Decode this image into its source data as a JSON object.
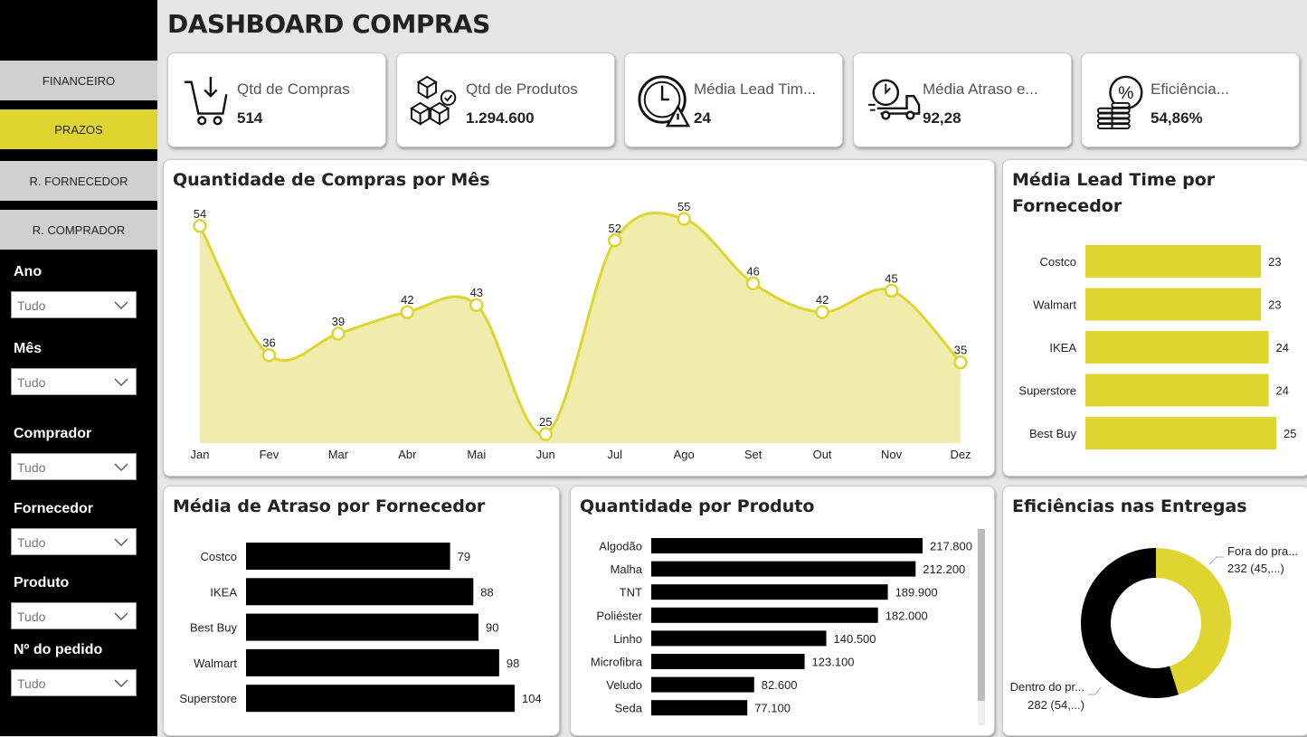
{
  "title": "DASHBOARD COMPRAS",
  "colors": {
    "accent": "#ded530",
    "accent_fill": "#f0ecab",
    "bar_dark": "#000000",
    "sidebar": "#000000"
  },
  "nav": [
    {
      "label": "FINANCEIRO",
      "active": false
    },
    {
      "label": "PRAZOS",
      "active": true
    },
    {
      "label": "R. FORNECEDOR",
      "active": false
    },
    {
      "label": "R. COMPRADOR",
      "active": false
    }
  ],
  "filters": [
    {
      "label": "Ano",
      "value": "Tudo"
    },
    {
      "label": "Mês",
      "value": "Tudo"
    },
    {
      "label": "Comprador",
      "value": "Tudo"
    },
    {
      "label": "Fornecedor",
      "value": "Tudo"
    },
    {
      "label": "Produto",
      "value": "Tudo"
    },
    {
      "label": "Nº do pedido",
      "value": "Tudo"
    }
  ],
  "kpis": [
    {
      "label": "Qtd de Compras",
      "value": "514",
      "icon": "shopping-cart-icon"
    },
    {
      "label": "Qtd de Produtos",
      "value": "1.294.600",
      "icon": "boxes-icon"
    },
    {
      "label": "Média Lead Tim...",
      "value": "24",
      "icon": "clock-warning-icon"
    },
    {
      "label": "Média Atraso e...",
      "value": "92,28",
      "icon": "delivery-truck-icon"
    },
    {
      "label": "Eficiência...",
      "value": "54,86%",
      "icon": "percent-coins-icon"
    }
  ],
  "chart_data": [
    {
      "type": "area",
      "title": "Quantidade de Compras por Mês",
      "categories": [
        "Jan",
        "Fev",
        "Mar",
        "Abr",
        "Mai",
        "Jun",
        "Jul",
        "Ago",
        "Set",
        "Out",
        "Nov",
        "Dez"
      ],
      "values": [
        54,
        36,
        39,
        42,
        43,
        25,
        52,
        55,
        46,
        42,
        45,
        35
      ]
    },
    {
      "type": "bar",
      "orientation": "horizontal",
      "title": "Média Lead Time por Fornecedor",
      "categories": [
        "Costco",
        "Walmart",
        "IKEA",
        "Superstore",
        "Best Buy"
      ],
      "values": [
        23,
        23,
        24,
        24,
        25
      ]
    },
    {
      "type": "bar",
      "orientation": "horizontal",
      "title": "Média de Atraso por Fornecedor",
      "categories": [
        "Costco",
        "IKEA",
        "Best Buy",
        "Walmart",
        "Superstore"
      ],
      "values": [
        79,
        88,
        90,
        98,
        104
      ]
    },
    {
      "type": "bar",
      "orientation": "horizontal",
      "title": "Quantidade por Produto",
      "categories": [
        "Algodão",
        "Malha",
        "TNT",
        "Poliéster",
        "Linho",
        "Microfibra",
        "Veludo",
        "Seda"
      ],
      "values": [
        217800,
        212200,
        189900,
        182000,
        140500,
        123100,
        82600,
        77100
      ],
      "labels": [
        "217.800",
        "212.200",
        "189.900",
        "182.000",
        "140.500",
        "123.100",
        "82.600",
        "77.100"
      ]
    },
    {
      "type": "pie",
      "donut": true,
      "title": "Eficiências nas Entregas",
      "slices": [
        {
          "name": "Fora do pra...",
          "value": 232,
          "label": "232 (45,...)"
        },
        {
          "name": "Dentro do pr...",
          "value": 282,
          "label": "282 (54,...)"
        }
      ]
    }
  ]
}
